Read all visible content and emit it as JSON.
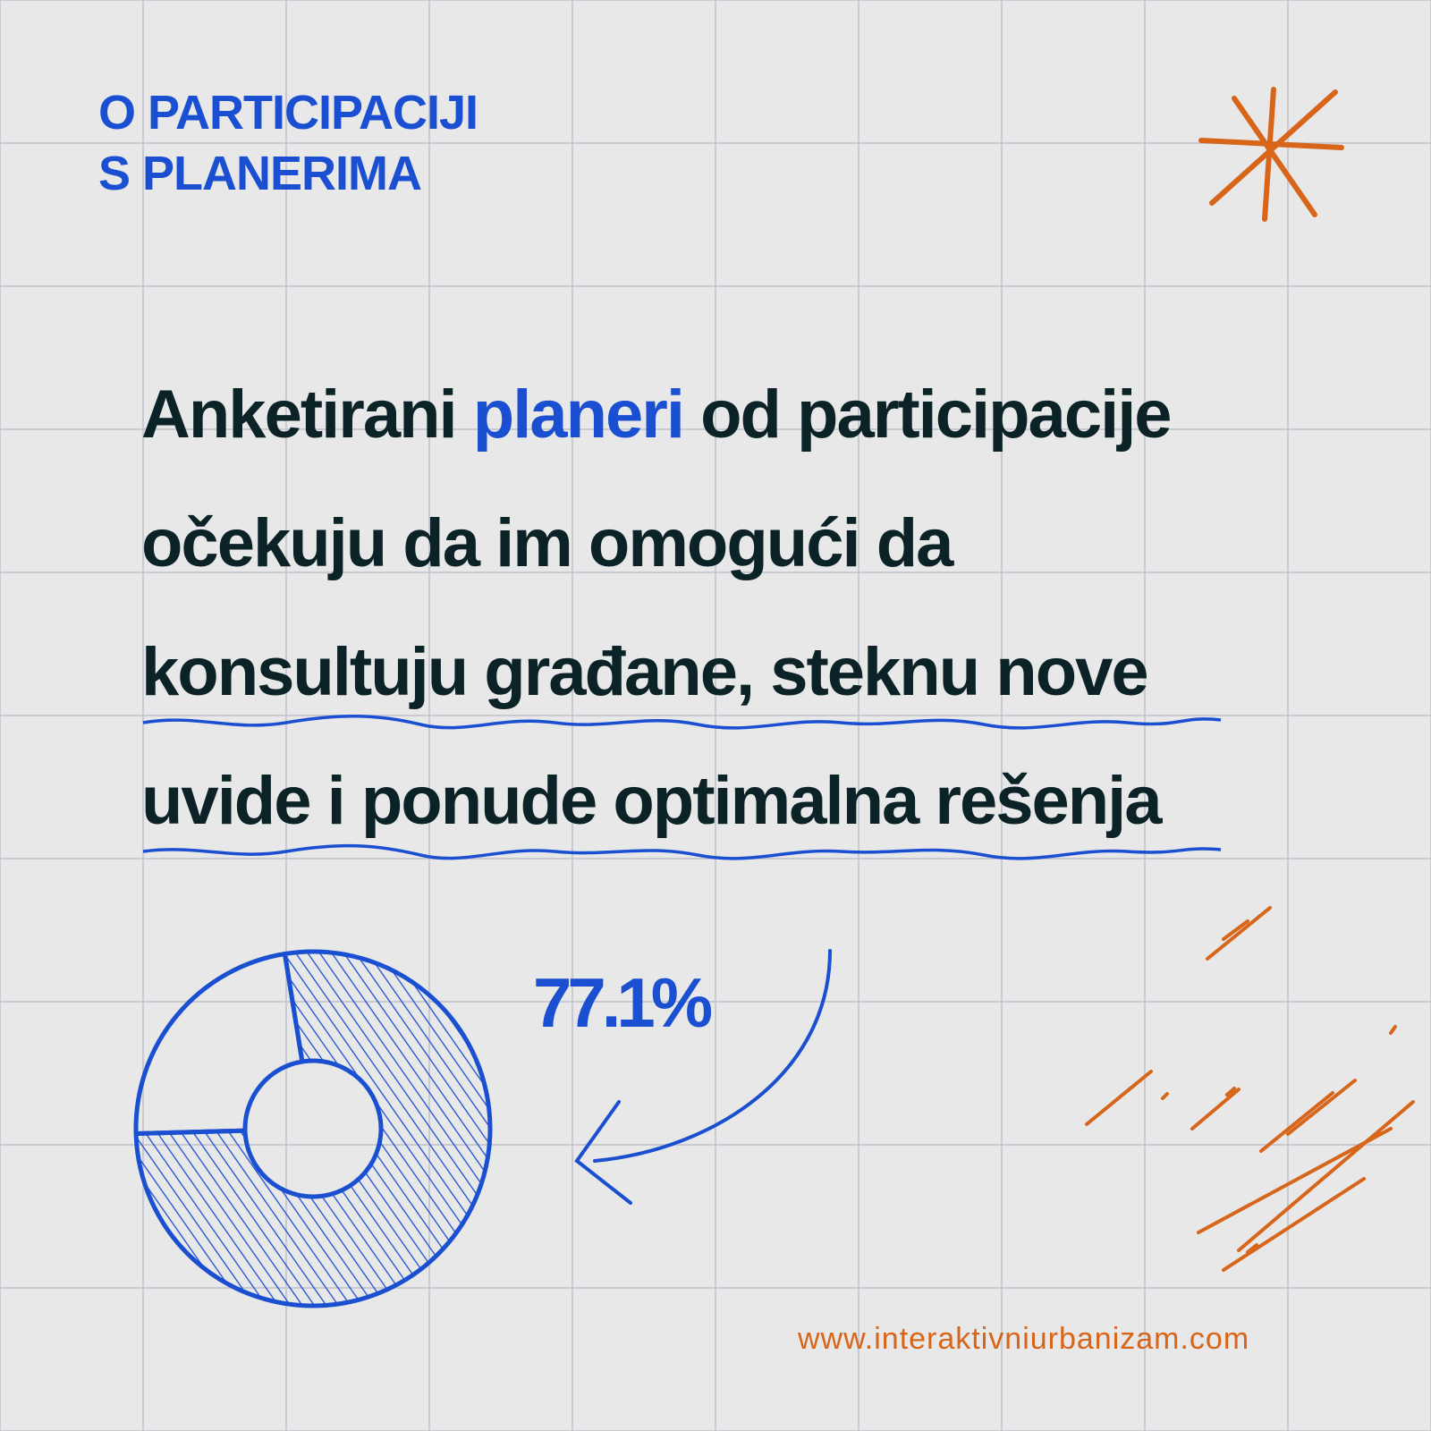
{
  "header": {
    "line1": "O PARTICIPACIJI",
    "line2": "S PLANERIMA"
  },
  "statement": {
    "line1_pre": "Anketirani ",
    "line1_highlight": "planeri",
    "line1_post": " od participacije",
    "line2": "očekuju da im omogući da",
    "line3": "konsultuju građane, steknu nove",
    "line4": "uvide i ponude optimalna rešenja"
  },
  "chart_data": {
    "type": "pie",
    "slices": [
      {
        "value": 77.1,
        "label": "77.1%",
        "hatched": true
      },
      {
        "value": 22.9,
        "hatched": false
      }
    ]
  },
  "footer": {
    "url": "www.interaktivniurbanizam.com"
  },
  "colors": {
    "blue": "#1a4fd1",
    "orange": "#d7651a",
    "dark": "#0b2326",
    "background": "#e8e8e8"
  }
}
